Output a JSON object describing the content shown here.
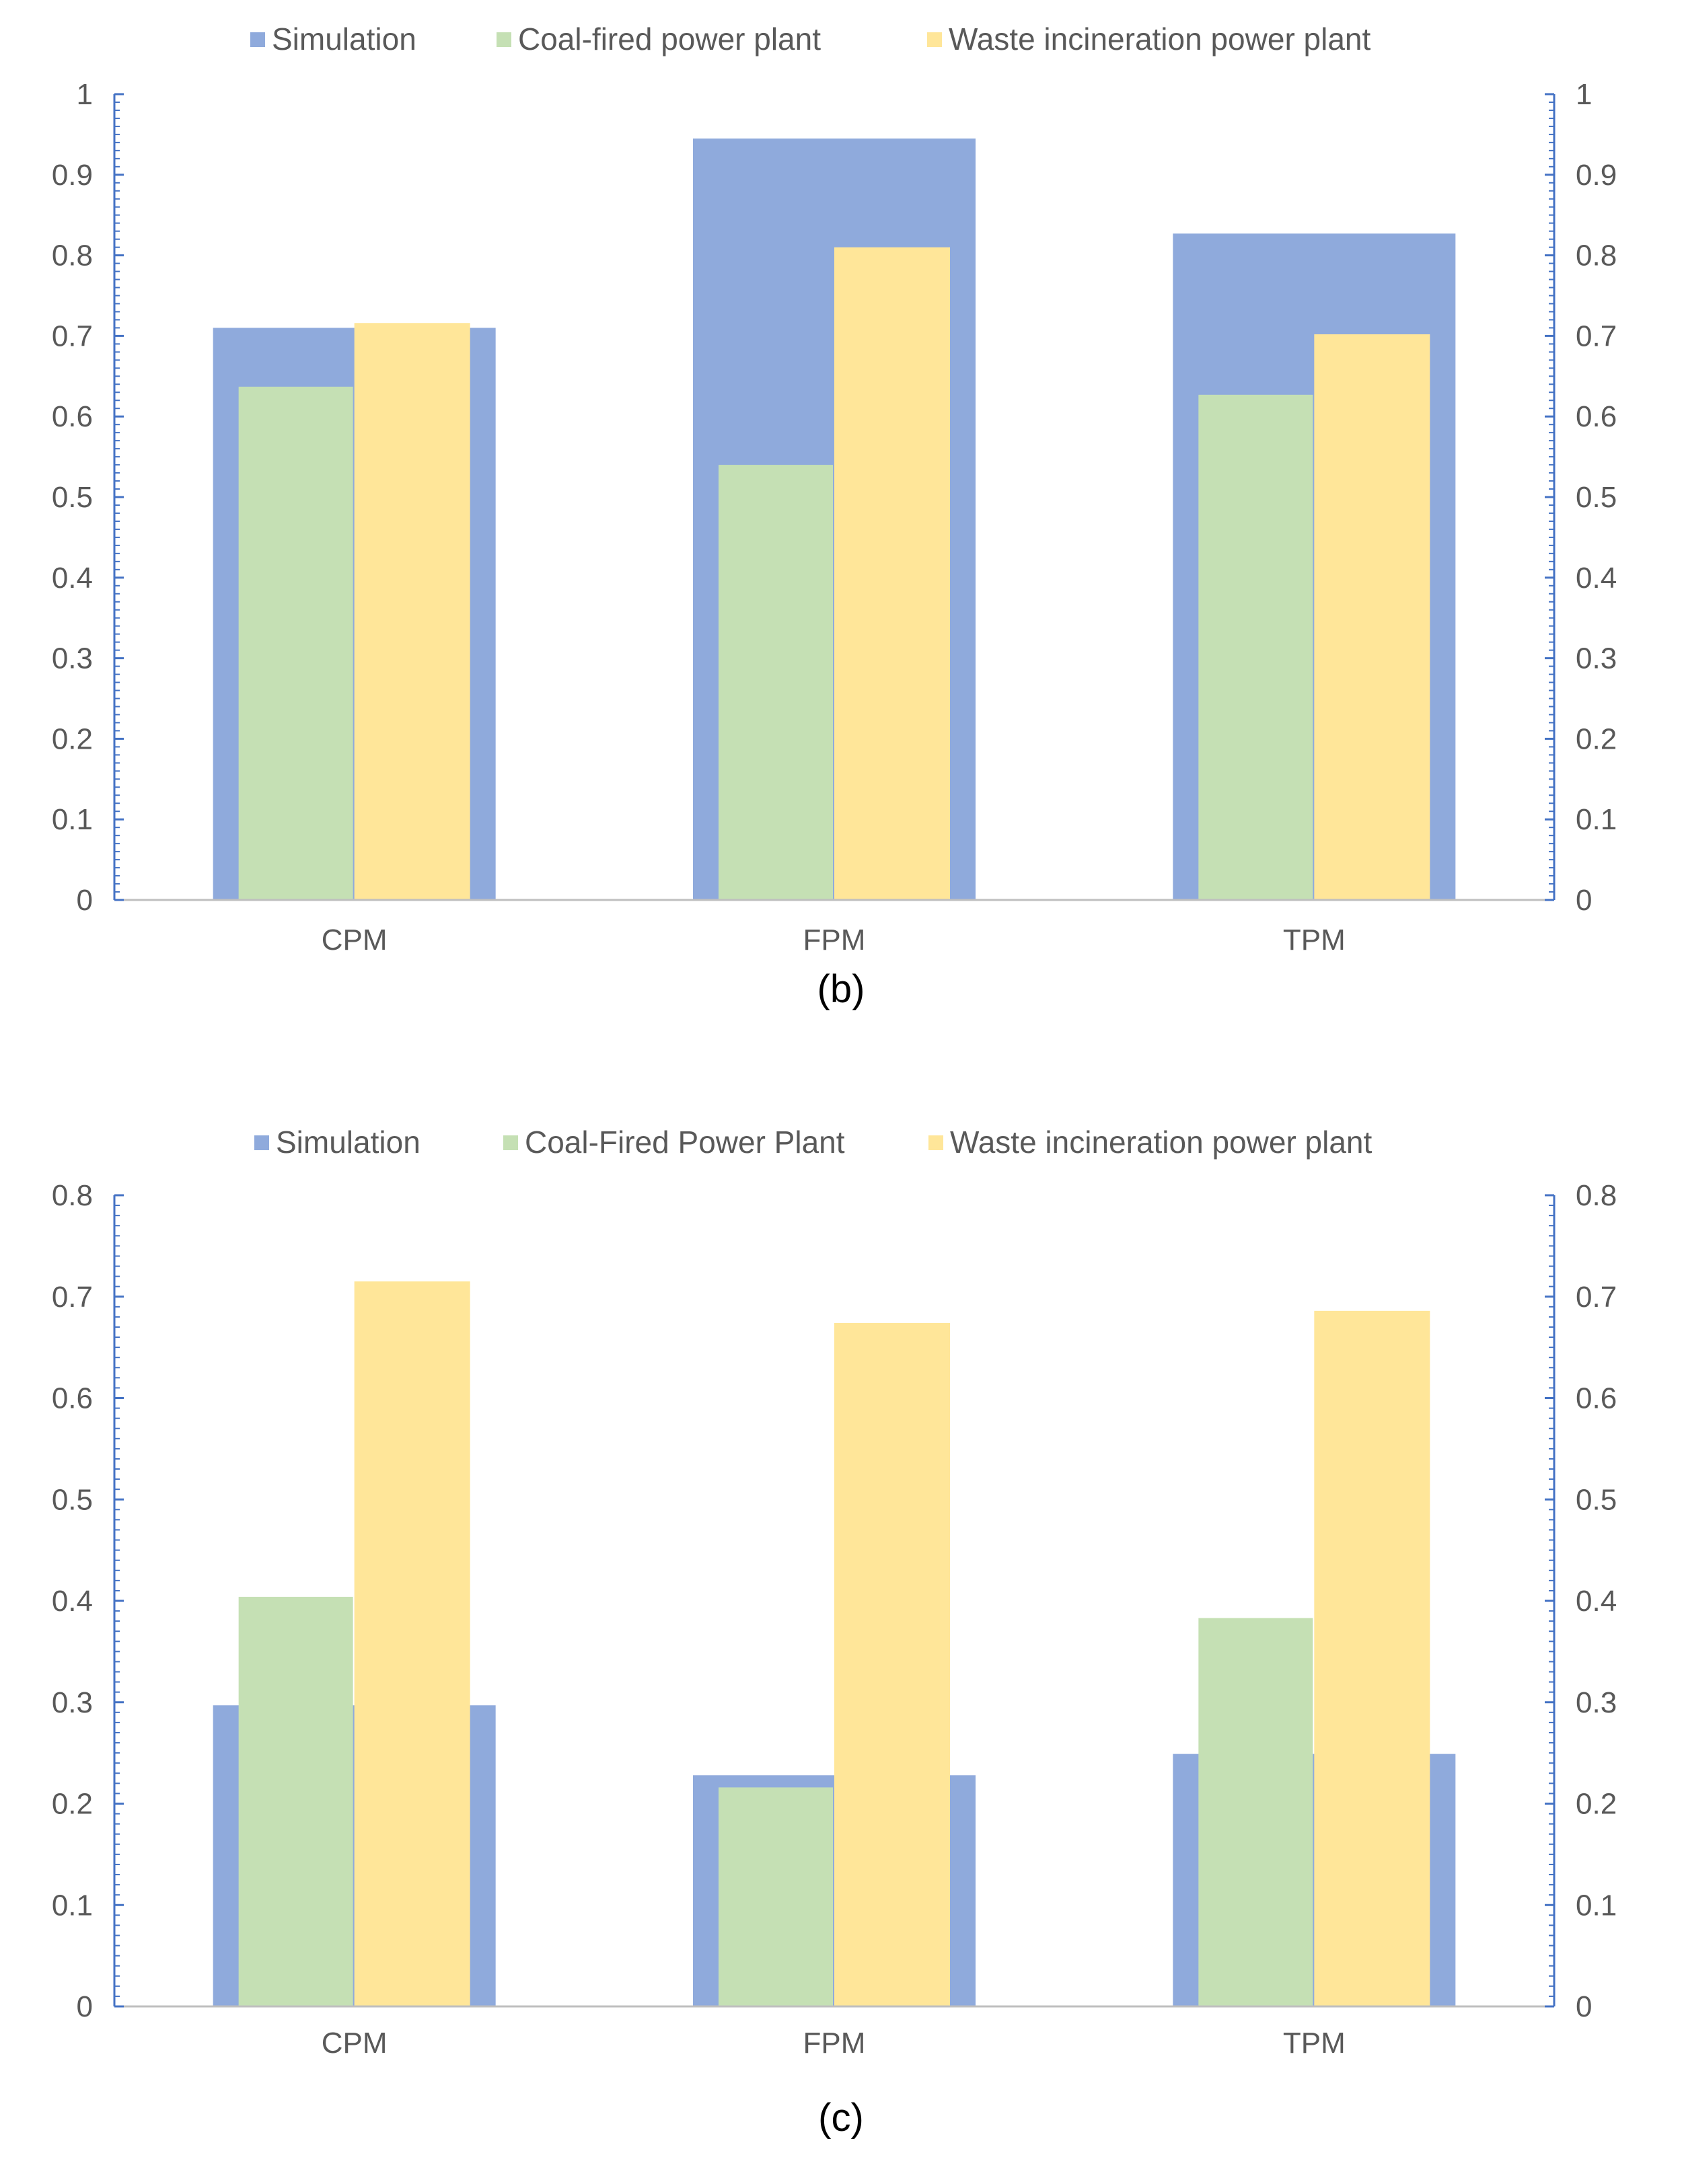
{
  "chart_data": [
    {
      "type": "bar",
      "panel_label": "(b)",
      "categories": [
        "CPM",
        "FPM",
        "TPM"
      ],
      "series": [
        {
          "name": "Simulation",
          "values": [
            0.71,
            0.945,
            0.827
          ],
          "color": "#8FAADC",
          "axis": "secondary"
        },
        {
          "name": "Coal-fired power plant",
          "values": [
            0.637,
            0.54,
            0.627
          ],
          "color": "#C5E0B4",
          "axis": "primary"
        },
        {
          "name": "Waste incineration power plant",
          "values": [
            0.716,
            0.81,
            0.702
          ],
          "color": "#FFE699",
          "axis": "primary"
        }
      ],
      "ylim": [
        0,
        1
      ],
      "yticks": [
        "0",
        "0.1",
        "0.2",
        "0.3",
        "0.4",
        "0.5",
        "0.6",
        "0.7",
        "0.8",
        "0.9",
        "1"
      ],
      "ytick_values": [
        0,
        0.1,
        0.2,
        0.3,
        0.4,
        0.5,
        0.6,
        0.7,
        0.8,
        0.9,
        1
      ],
      "legend_position": "top",
      "grid": false,
      "xlabel": "",
      "ylabel": ""
    },
    {
      "type": "bar",
      "panel_label": "(c)",
      "categories": [
        "CPM",
        "FPM",
        "TPM"
      ],
      "series": [
        {
          "name": "Simulation",
          "values": [
            0.297,
            0.228,
            0.249
          ],
          "color": "#8FAADC",
          "axis": "secondary"
        },
        {
          "name": "Coal-Fired Power Plant",
          "values": [
            0.404,
            0.216,
            0.383
          ],
          "color": "#C5E0B4",
          "axis": "primary"
        },
        {
          "name": "Waste incineration power plant",
          "values": [
            0.715,
            0.674,
            0.686
          ],
          "color": "#FFE699",
          "axis": "primary"
        }
      ],
      "ylim": [
        0,
        0.8
      ],
      "yticks": [
        "0",
        "0.1",
        "0.2",
        "0.3",
        "0.4",
        "0.5",
        "0.6",
        "0.7",
        "0.8"
      ],
      "ytick_values": [
        0,
        0.1,
        0.2,
        0.3,
        0.4,
        0.5,
        0.6,
        0.7,
        0.8
      ],
      "legend_position": "top",
      "grid": false,
      "xlabel": "",
      "ylabel": ""
    }
  ],
  "colors": {
    "axis_secondary": "#4472C4",
    "axis_primary": "#BFBFBF",
    "text": "#595959"
  }
}
